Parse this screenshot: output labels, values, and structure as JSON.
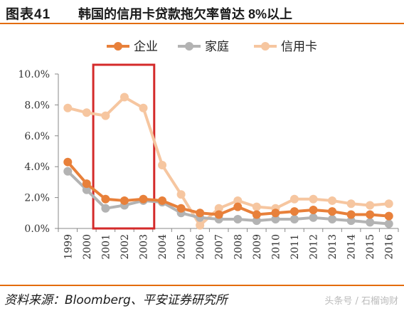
{
  "header": {
    "figure_number": "图表41",
    "title": "韩国的信用卡贷款拖欠率曾达 8%以上"
  },
  "source": "资料来源：Bloomberg、平安证券研究所",
  "watermark": "头条号 / 石榴询财",
  "colors": {
    "accent": "#e36c0a",
    "enterprise": "#e8803a",
    "household": "#b3b3b3",
    "credit_card": "#f6c6a0",
    "highlight_box": "#d42a2a",
    "axis": "#888888"
  },
  "chart_data": {
    "type": "line",
    "categories": [
      "1999",
      "2000",
      "2001",
      "2002",
      "2003",
      "2004",
      "2005",
      "2006",
      "2007",
      "2008",
      "2009",
      "2010",
      "2011",
      "2012",
      "2013",
      "2014",
      "2015",
      "2016"
    ],
    "ylim": [
      0,
      10
    ],
    "yticks": [
      "0.0%",
      "2.0%",
      "4.0%",
      "6.0%",
      "8.0%",
      "10.0%"
    ],
    "ytick_values": [
      0,
      2,
      4,
      6,
      8,
      10
    ],
    "legend_position": "top",
    "grid": false,
    "highlight_range": [
      "2001",
      "2003"
    ],
    "series": [
      {
        "name": "企业",
        "key": "enterprise",
        "values": [
          4.3,
          2.9,
          1.9,
          1.8,
          1.9,
          1.8,
          1.3,
          1.0,
          0.9,
          1.4,
          0.9,
          1.0,
          1.1,
          1.2,
          1.1,
          0.9,
          0.9,
          0.8
        ]
      },
      {
        "name": "家庭",
        "key": "household",
        "values": [
          3.7,
          2.5,
          1.3,
          1.5,
          1.8,
          1.7,
          1.0,
          0.7,
          0.6,
          0.6,
          0.5,
          0.6,
          0.6,
          0.7,
          0.6,
          0.5,
          0.4,
          0.3
        ]
      },
      {
        "name": "信用卡",
        "key": "credit_card",
        "values": [
          7.8,
          7.5,
          7.3,
          8.5,
          7.8,
          4.1,
          2.2,
          0.2,
          1.3,
          1.8,
          1.4,
          1.3,
          1.9,
          1.9,
          1.8,
          1.6,
          1.5,
          1.6
        ]
      }
    ]
  }
}
